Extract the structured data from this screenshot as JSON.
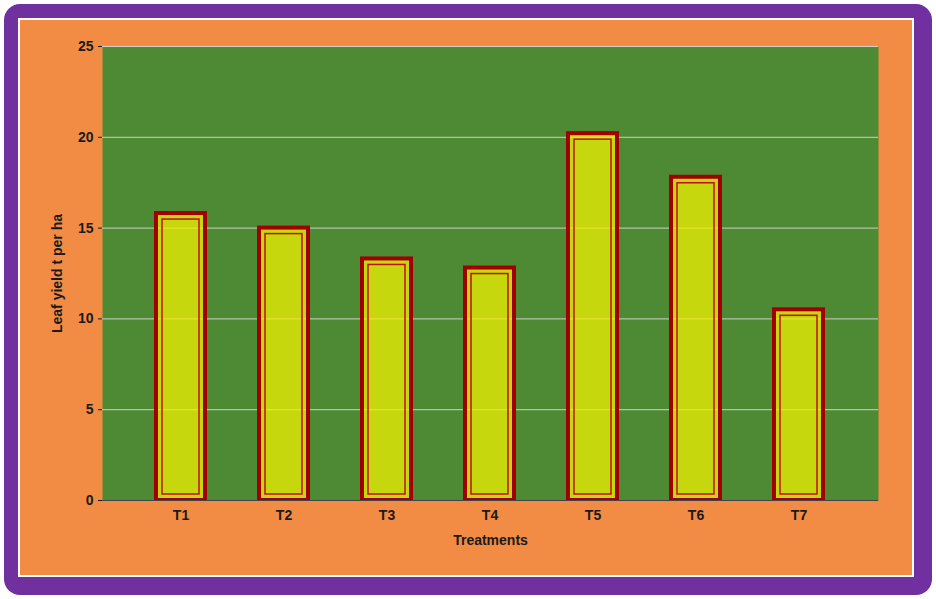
{
  "chart_data": {
    "type": "bar",
    "x_label": "Treatments",
    "y_label": "Leaf yield t per ha",
    "categories": [
      "T1",
      "T2",
      "T3",
      "T4",
      "T5",
      "T6",
      "T7"
    ],
    "values": [
      15.8,
      15.0,
      13.3,
      12.8,
      20.2,
      17.8,
      10.5
    ],
    "color": "#f0f000",
    "ylim": [
      0,
      25
    ],
    "yticks": [
      0,
      5,
      10,
      15,
      20,
      25
    ],
    "grid": true
  }
}
